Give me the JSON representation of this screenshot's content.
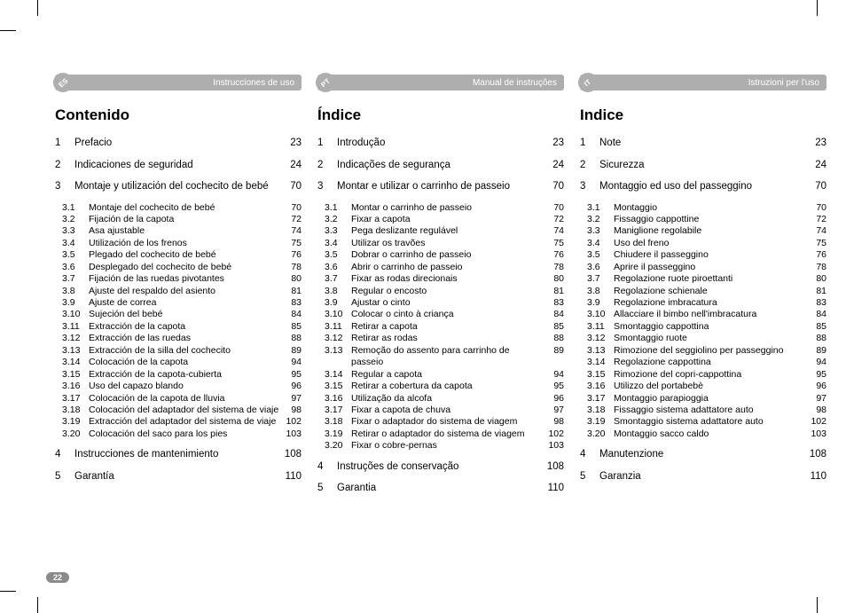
{
  "pageNumber": "22",
  "columns": [
    {
      "lang": "ES",
      "banner": "Instrucciones de uso",
      "title": "Contenido",
      "sections": [
        {
          "num": "1",
          "label": "Prefacio",
          "pg": "23"
        },
        {
          "num": "2",
          "label": "Indicaciones de seguridad",
          "pg": "24"
        },
        {
          "num": "3",
          "label": "Montaje y utilización del cochecito de bebé",
          "pg": "70",
          "subs": [
            {
              "num": "3.1",
              "label": "Montaje del cochecito de bebé",
              "pg": "70"
            },
            {
              "num": "3.2",
              "label": "Fijación de la capota",
              "pg": "72"
            },
            {
              "num": "3.3",
              "label": "Asa ajustable",
              "pg": "74"
            },
            {
              "num": "3.4",
              "label": "Utilización de los frenos",
              "pg": "75"
            },
            {
              "num": "3.5",
              "label": "Plegado del cochecito de bebé",
              "pg": "76"
            },
            {
              "num": "3.6",
              "label": "Desplegado del cochecito de bebé",
              "pg": "78"
            },
            {
              "num": "3.7",
              "label": "Fijación de las ruedas pivotantes",
              "pg": "80"
            },
            {
              "num": "3.8",
              "label": "Ajuste del respaldo del asiento",
              "pg": "81"
            },
            {
              "num": "3.9",
              "label": "Ajuste de correa",
              "pg": "83"
            },
            {
              "num": "3.10",
              "label": "Sujeción del bebé",
              "pg": "84"
            },
            {
              "num": "3.11",
              "label": "Extracción de la capota",
              "pg": "85"
            },
            {
              "num": "3.12",
              "label": "Extracción de las ruedas",
              "pg": "88"
            },
            {
              "num": "3.13",
              "label": "Extracción de la silla del cochecito",
              "pg": "89"
            },
            {
              "num": "3.14",
              "label": "Colocación de la capota",
              "pg": "94"
            },
            {
              "num": "3.15",
              "label": "Extracción de la capota-cubierta",
              "pg": "95"
            },
            {
              "num": "3.16",
              "label": "Uso del capazo blando",
              "pg": "96"
            },
            {
              "num": "3.17",
              "label": "Colocación de la capota de lluvia",
              "pg": "97"
            },
            {
              "num": "3.18",
              "label": "Colocación del adaptador del sistema de viaje",
              "pg": "98"
            },
            {
              "num": "3.19",
              "label": "Extracción del adaptador del sistema de viaje",
              "pg": "102"
            },
            {
              "num": "3.20",
              "label": "Colocación del saco para los pies",
              "pg": "103"
            }
          ]
        },
        {
          "num": "4",
          "label": "Instrucciones de mantenimiento",
          "pg": "108"
        },
        {
          "num": "5",
          "label": "Garantía",
          "pg": "110"
        }
      ]
    },
    {
      "lang": "PT",
      "banner": "Manual de instruções",
      "title": "Índice",
      "sections": [
        {
          "num": "1",
          "label": "Introdução",
          "pg": "23"
        },
        {
          "num": "2",
          "label": "Indicações de segurança",
          "pg": "24"
        },
        {
          "num": "3",
          "label": "Montar e utilizar o carrinho de passeio",
          "pg": "70",
          "subs": [
            {
              "num": "3.1",
              "label": "Montar o carrinho de passeio",
              "pg": "70"
            },
            {
              "num": "3.2",
              "label": "Fixar a capota",
              "pg": "72"
            },
            {
              "num": "3.3",
              "label": "Pega deslizante regulável",
              "pg": "74"
            },
            {
              "num": "3.4",
              "label": "Utilizar os travões",
              "pg": "75"
            },
            {
              "num": "3.5",
              "label": "Dobrar o carrinho de passeio",
              "pg": "76"
            },
            {
              "num": "3.6",
              "label": "Abrir o carrinho de passeio",
              "pg": "78"
            },
            {
              "num": "3.7",
              "label": "Fixar as rodas direcionais",
              "pg": "80"
            },
            {
              "num": "3.8",
              "label": "Regular o encosto",
              "pg": "81"
            },
            {
              "num": "3.9",
              "label": "Ajustar o cinto",
              "pg": "83"
            },
            {
              "num": "3.10",
              "label": "Colocar o cinto à criança",
              "pg": "84"
            },
            {
              "num": "3.11",
              "label": "Retirar a capota",
              "pg": "85"
            },
            {
              "num": "3.12",
              "label": "Retirar as rodas",
              "pg": "88"
            },
            {
              "num": "3.13",
              "label": "Remoção do assento para carrinho de passeio",
              "pg": "89"
            },
            {
              "num": "3.14",
              "label": "Regular a capota",
              "pg": "94"
            },
            {
              "num": "3.15",
              "label": "Retirar a cobertura da capota",
              "pg": "95"
            },
            {
              "num": "3.16",
              "label": "Utilização da alcofa",
              "pg": "96"
            },
            {
              "num": "3.17",
              "label": "Fixar a capota de chuva",
              "pg": "97"
            },
            {
              "num": "3.18",
              "label": "Fixar o adaptador do sistema de viagem",
              "pg": "98"
            },
            {
              "num": "3.19",
              "label": "Retirar o adaptador do sistema de viagem",
              "pg": "102"
            },
            {
              "num": "3.20",
              "label": "Fixar o cobre-pernas",
              "pg": "103"
            }
          ]
        },
        {
          "num": "4",
          "label": "Instruções de conservação",
          "pg": "108"
        },
        {
          "num": "5",
          "label": "Garantia",
          "pg": "110"
        }
      ]
    },
    {
      "lang": "IT",
      "banner": "Istruzioni per l'uso",
      "title": "Indice",
      "sections": [
        {
          "num": "1",
          "label": "Note",
          "pg": "23"
        },
        {
          "num": "2",
          "label": "Sicurezza",
          "pg": "24"
        },
        {
          "num": "3",
          "label": "Montaggio ed uso del passeggino",
          "pg": "70",
          "subs": [
            {
              "num": "3.1",
              "label": "Montaggio",
              "pg": "70"
            },
            {
              "num": "3.2",
              "label": "Fissaggio cappottine",
              "pg": "72"
            },
            {
              "num": "3.3",
              "label": "Maniglione regolabile",
              "pg": "74"
            },
            {
              "num": "3.4",
              "label": "Uso del freno",
              "pg": "75"
            },
            {
              "num": "3.5",
              "label": "Chiudere il passeggino",
              "pg": "76"
            },
            {
              "num": "3.6",
              "label": "Aprire il passeggino",
              "pg": "78"
            },
            {
              "num": "3.7",
              "label": "Regolazione ruote piroettanti",
              "pg": "80"
            },
            {
              "num": "3.8",
              "label": "Regolazione schienale",
              "pg": "81"
            },
            {
              "num": "3.9",
              "label": "Regolazione imbracatura",
              "pg": "83"
            },
            {
              "num": "3.10",
              "label": "Allacciare il bimbo nell'imbracatura",
              "pg": "84"
            },
            {
              "num": "3.11",
              "label": "Smontaggio cappottina",
              "pg": "85"
            },
            {
              "num": "3.12",
              "label": "Smontaggio ruote",
              "pg": "88"
            },
            {
              "num": "3.13",
              "label": "Rimozione del seggiolino per passeggino",
              "pg": "89"
            },
            {
              "num": "3.14",
              "label": "Regolazione cappottina",
              "pg": "94"
            },
            {
              "num": "3.15",
              "label": "Rimozione del copri-cappottina",
              "pg": "95"
            },
            {
              "num": "3.16",
              "label": "Utilizzo del portabebè",
              "pg": "96"
            },
            {
              "num": "3.17",
              "label": "Montaggio parapioggia",
              "pg": "97"
            },
            {
              "num": "3.18",
              "label": "Fissaggio sistema adattatore auto",
              "pg": "98"
            },
            {
              "num": "3.19",
              "label": "Smontaggio sistema adattatore auto",
              "pg": "102"
            },
            {
              "num": "3.20",
              "label": "Montaggio sacco caldo",
              "pg": "103"
            }
          ]
        },
        {
          "num": "4",
          "label": "Manutenzione",
          "pg": "108"
        },
        {
          "num": "5",
          "label": "Garanzia",
          "pg": "110"
        }
      ]
    }
  ]
}
